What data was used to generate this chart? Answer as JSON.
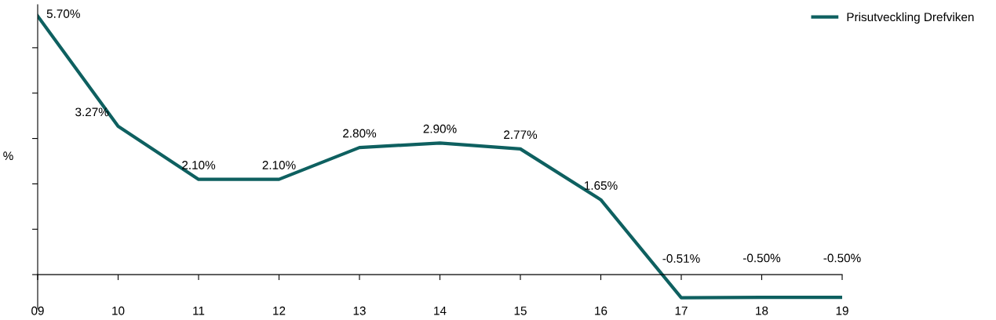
{
  "chart_data": {
    "type": "line",
    "ylabel": "%",
    "categories": [
      "09",
      "10",
      "11",
      "12",
      "13",
      "14",
      "15",
      "16",
      "17",
      "18",
      "19"
    ],
    "series": [
      {
        "name": "Prisutveckling Drefviken",
        "color": "#0e6060",
        "values": [
          5.7,
          3.27,
          2.1,
          2.1,
          2.8,
          2.9,
          2.77,
          1.65,
          -0.51,
          -0.5,
          -0.5
        ],
        "value_labels": [
          "5.70%",
          "3.27%",
          "2.10%",
          "2.10%",
          "2.80%",
          "2.90%",
          "2.77%",
          "1.65%",
          "-0.51%",
          "-0.50%",
          "-0.50%"
        ]
      }
    ],
    "tick_labels": "x",
    "legend": "top right",
    "marker": "none",
    "line_style": "solid"
  }
}
